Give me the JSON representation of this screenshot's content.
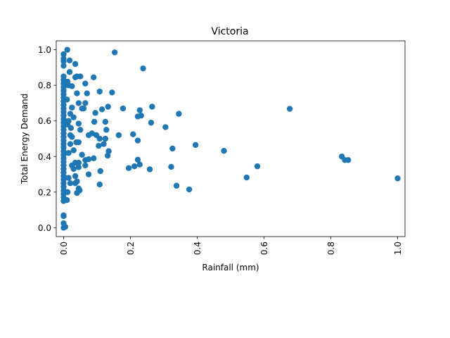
{
  "chart_data": {
    "type": "scatter",
    "title": "Victoria",
    "xlabel": "Rainfall (mm)",
    "ylabel": "Total Energy Demand",
    "xlim": [
      -0.022,
      1.022
    ],
    "ylim": [
      -0.05,
      1.05
    ],
    "xticks": [
      "0.0",
      "0.2",
      "0.4",
      "0.6",
      "0.8",
      "1.0"
    ],
    "yticks": [
      "0.0",
      "0.2",
      "0.4",
      "0.6",
      "0.8",
      "1.0"
    ],
    "grid": false,
    "marker_color": "#1f77b4",
    "series": [
      {
        "points": [
          [
            0.011,
            1.0
          ],
          [
            0.0,
            0.975
          ],
          [
            0.0,
            0.95
          ],
          [
            0.0,
            0.935
          ],
          [
            0.0,
            0.91
          ],
          [
            0.018,
            0.94
          ],
          [
            0.153,
            0.985
          ],
          [
            0.238,
            0.895
          ],
          [
            0.035,
            0.92
          ],
          [
            0.018,
            0.875
          ],
          [
            0.0,
            0.85
          ],
          [
            0.0,
            0.83
          ],
          [
            0.0,
            0.81
          ],
          [
            0.0,
            0.79
          ],
          [
            0.0,
            0.77
          ],
          [
            0.0,
            0.75
          ],
          [
            0.0,
            0.73
          ],
          [
            0.0,
            0.71
          ],
          [
            0.0,
            0.69
          ],
          [
            0.0,
            0.67
          ],
          [
            0.0,
            0.65
          ],
          [
            0.0,
            0.63
          ],
          [
            0.0,
            0.61
          ],
          [
            0.0,
            0.59
          ],
          [
            0.0,
            0.57
          ],
          [
            0.0,
            0.55
          ],
          [
            0.0,
            0.53
          ],
          [
            0.0,
            0.51
          ],
          [
            0.0,
            0.49
          ],
          [
            0.0,
            0.47
          ],
          [
            0.0,
            0.45
          ],
          [
            0.0,
            0.43
          ],
          [
            0.0,
            0.41
          ],
          [
            0.0,
            0.39
          ],
          [
            0.0,
            0.37
          ],
          [
            0.0,
            0.35
          ],
          [
            0.0,
            0.33
          ],
          [
            0.0,
            0.31
          ],
          [
            0.0,
            0.29
          ],
          [
            0.0,
            0.27
          ],
          [
            0.0,
            0.25
          ],
          [
            0.0,
            0.23
          ],
          [
            0.0,
            0.21
          ],
          [
            0.0,
            0.19
          ],
          [
            0.0,
            0.17
          ],
          [
            0.0,
            0.15
          ],
          [
            0.0,
            0.07
          ],
          [
            0.0,
            0.065
          ],
          [
            0.0,
            0.025
          ],
          [
            0.0,
            0.0
          ],
          [
            0.005,
            0.005
          ],
          [
            0.012,
            0.82
          ],
          [
            0.015,
            0.8
          ],
          [
            0.025,
            0.795
          ],
          [
            0.04,
            0.85
          ],
          [
            0.05,
            0.85
          ],
          [
            0.035,
            0.845
          ],
          [
            0.065,
            0.81
          ],
          [
            0.09,
            0.845
          ],
          [
            0.04,
            0.755
          ],
          [
            0.07,
            0.755
          ],
          [
            0.108,
            0.765
          ],
          [
            0.145,
            0.76
          ],
          [
            0.045,
            0.7
          ],
          [
            0.065,
            0.7
          ],
          [
            0.055,
            0.67
          ],
          [
            0.06,
            0.67
          ],
          [
            0.025,
            0.675
          ],
          [
            0.115,
            0.665
          ],
          [
            0.133,
            0.68
          ],
          [
            0.178,
            0.67
          ],
          [
            0.095,
            0.645
          ],
          [
            0.228,
            0.66
          ],
          [
            0.265,
            0.68
          ],
          [
            0.222,
            0.625
          ],
          [
            0.232,
            0.63
          ],
          [
            0.345,
            0.64
          ],
          [
            0.262,
            0.59
          ],
          [
            0.305,
            0.565
          ],
          [
            0.677,
            0.668
          ],
          [
            0.02,
            0.64
          ],
          [
            0.015,
            0.6
          ],
          [
            0.03,
            0.62
          ],
          [
            0.045,
            0.585
          ],
          [
            0.05,
            0.55
          ],
          [
            0.092,
            0.595
          ],
          [
            0.125,
            0.595
          ],
          [
            0.128,
            0.55
          ],
          [
            0.085,
            0.53
          ],
          [
            0.075,
            0.52
          ],
          [
            0.098,
            0.52
          ],
          [
            0.165,
            0.52
          ],
          [
            0.208,
            0.525
          ],
          [
            0.222,
            0.49
          ],
          [
            0.108,
            0.5
          ],
          [
            0.125,
            0.5
          ],
          [
            0.02,
            0.52
          ],
          [
            0.025,
            0.51
          ],
          [
            0.038,
            0.48
          ],
          [
            0.045,
            0.48
          ],
          [
            0.02,
            0.47
          ],
          [
            0.105,
            0.46
          ],
          [
            0.12,
            0.47
          ],
          [
            0.395,
            0.465
          ],
          [
            0.135,
            0.43
          ],
          [
            0.132,
            0.405
          ],
          [
            0.055,
            0.41
          ],
          [
            0.03,
            0.435
          ],
          [
            0.326,
            0.445
          ],
          [
            0.48,
            0.432
          ],
          [
            0.075,
            0.385
          ],
          [
            0.09,
            0.39
          ],
          [
            0.065,
            0.38
          ],
          [
            0.035,
            0.365
          ],
          [
            0.045,
            0.365
          ],
          [
            0.025,
            0.35
          ],
          [
            0.03,
            0.33
          ],
          [
            0.065,
            0.35
          ],
          [
            0.045,
            0.34
          ],
          [
            0.11,
            0.318
          ],
          [
            0.195,
            0.335
          ],
          [
            0.212,
            0.345
          ],
          [
            0.228,
            0.355
          ],
          [
            0.222,
            0.382
          ],
          [
            0.258,
            0.328
          ],
          [
            0.322,
            0.342
          ],
          [
            0.58,
            0.345
          ],
          [
            0.548,
            0.282
          ],
          [
            0.833,
            0.4
          ],
          [
            0.842,
            0.38
          ],
          [
            0.852,
            0.38
          ],
          [
            1.0,
            0.277
          ],
          [
            0.075,
            0.3
          ],
          [
            0.035,
            0.29
          ],
          [
            0.04,
            0.26
          ],
          [
            0.035,
            0.25
          ],
          [
            0.045,
            0.22
          ],
          [
            0.04,
            0.195
          ],
          [
            0.048,
            0.21
          ],
          [
            0.108,
            0.243
          ],
          [
            0.338,
            0.236
          ],
          [
            0.376,
            0.215
          ],
          [
            0.02,
            0.25
          ],
          [
            0.012,
            0.2
          ],
          [
            0.015,
            0.28
          ],
          [
            0.01,
            0.155
          ],
          [
            0.015,
            0.42
          ],
          [
            0.012,
            0.58
          ],
          [
            0.01,
            0.72
          ],
          [
            0.022,
            0.56
          ]
        ]
      }
    ]
  }
}
